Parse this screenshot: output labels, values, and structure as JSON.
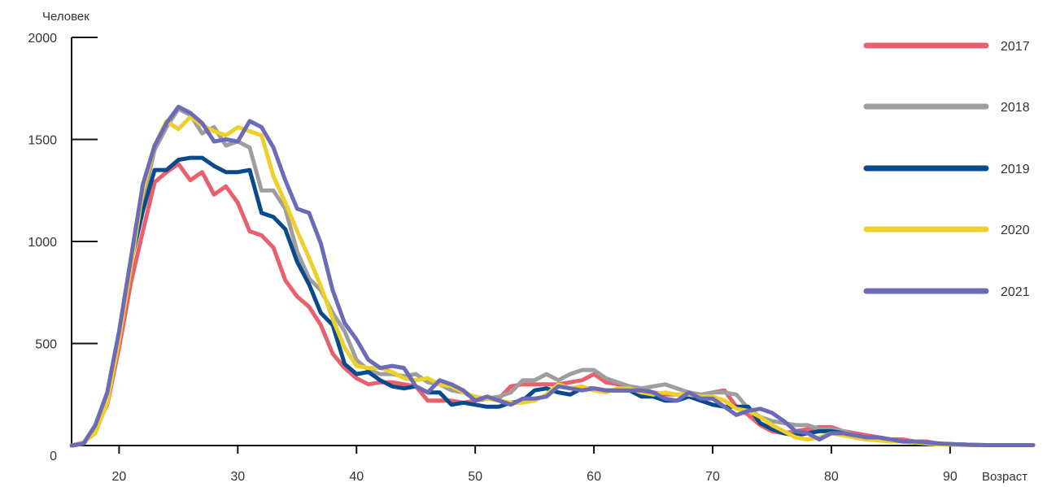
{
  "chart_data": {
    "type": "line",
    "ylabel": "Человек",
    "xlabel": "Возраст",
    "xlim": [
      16,
      97
    ],
    "ylim": [
      0,
      2000
    ],
    "x_ticks": [
      20,
      30,
      40,
      50,
      60,
      70,
      80,
      90
    ],
    "y_ticks": [
      0,
      500,
      1000,
      1500,
      2000
    ],
    "grid": false,
    "legend_position": "right",
    "x": [
      16,
      17,
      18,
      19,
      20,
      21,
      22,
      23,
      24,
      25,
      26,
      27,
      28,
      29,
      30,
      31,
      32,
      33,
      34,
      35,
      36,
      37,
      38,
      39,
      40,
      41,
      42,
      43,
      44,
      45,
      46,
      47,
      48,
      49,
      50,
      51,
      52,
      53,
      54,
      55,
      56,
      57,
      58,
      59,
      60,
      61,
      62,
      63,
      64,
      65,
      66,
      67,
      68,
      69,
      70,
      71,
      72,
      73,
      74,
      75,
      76,
      77,
      78,
      79,
      80,
      81,
      82,
      83,
      84,
      85,
      86,
      87,
      88,
      89,
      90,
      91,
      92,
      93,
      94,
      95,
      96,
      97
    ],
    "series": [
      {
        "name": "2017",
        "color": "#e8606e",
        "values": [
          0,
          10,
          80,
          200,
          480,
          800,
          1050,
          1290,
          1340,
          1380,
          1300,
          1340,
          1230,
          1270,
          1190,
          1050,
          1030,
          970,
          810,
          730,
          680,
          590,
          450,
          380,
          330,
          300,
          310,
          310,
          300,
          290,
          220,
          220,
          220,
          210,
          220,
          230,
          230,
          290,
          300,
          300,
          300,
          300,
          310,
          320,
          350,
          310,
          300,
          290,
          280,
          260,
          250,
          250,
          250,
          240,
          260,
          270,
          190,
          150,
          100,
          70,
          60,
          70,
          80,
          90,
          90,
          70,
          60,
          50,
          40,
          30,
          30,
          20,
          20,
          10,
          5,
          5,
          2,
          2,
          2,
          2,
          2,
          2
        ]
      },
      {
        "name": "2018",
        "color": "#9e9e9e",
        "values": [
          0,
          15,
          70,
          220,
          550,
          900,
          1200,
          1450,
          1560,
          1650,
          1620,
          1530,
          1560,
          1470,
          1490,
          1460,
          1250,
          1250,
          1160,
          950,
          820,
          760,
          650,
          560,
          420,
          370,
          350,
          350,
          340,
          350,
          310,
          300,
          270,
          260,
          230,
          230,
          240,
          260,
          320,
          320,
          350,
          320,
          350,
          370,
          370,
          330,
          310,
          290,
          280,
          290,
          300,
          280,
          260,
          250,
          260,
          260,
          250,
          180,
          140,
          120,
          110,
          100,
          100,
          80,
          80,
          70,
          50,
          40,
          30,
          25,
          20,
          20,
          15,
          10,
          5,
          5,
          3,
          2,
          2,
          2,
          2,
          2
        ]
      },
      {
        "name": "2019",
        "color": "#0a4a8c",
        "values": [
          0,
          10,
          80,
          230,
          540,
          900,
          1150,
          1350,
          1350,
          1400,
          1410,
          1410,
          1370,
          1340,
          1340,
          1350,
          1140,
          1120,
          1060,
          900,
          790,
          650,
          590,
          400,
          350,
          360,
          320,
          290,
          280,
          290,
          260,
          260,
          200,
          210,
          200,
          190,
          190,
          210,
          220,
          270,
          280,
          260,
          250,
          280,
          280,
          270,
          270,
          270,
          240,
          240,
          220,
          220,
          240,
          220,
          200,
          190,
          190,
          190,
          110,
          80,
          60,
          50,
          60,
          70,
          70,
          60,
          40,
          30,
          30,
          20,
          20,
          15,
          10,
          10,
          5,
          5,
          3,
          2,
          2,
          2,
          2,
          2
        ]
      },
      {
        "name": "2020",
        "color": "#efd02a",
        "values": [
          0,
          15,
          60,
          210,
          520,
          880,
          1250,
          1470,
          1590,
          1550,
          1610,
          1570,
          1540,
          1520,
          1560,
          1540,
          1520,
          1320,
          1190,
          1050,
          920,
          780,
          620,
          480,
          390,
          380,
          380,
          360,
          330,
          320,
          330,
          300,
          290,
          260,
          240,
          230,
          220,
          210,
          210,
          220,
          250,
          300,
          280,
          290,
          270,
          260,
          280,
          280,
          260,
          250,
          260,
          250,
          250,
          240,
          240,
          220,
          180,
          170,
          140,
          100,
          70,
          40,
          30,
          40,
          60,
          50,
          40,
          30,
          25,
          20,
          20,
          15,
          10,
          5,
          5,
          3,
          2,
          2,
          2,
          2,
          2,
          2
        ]
      },
      {
        "name": "2021",
        "color": "#6b6bb8",
        "values": [
          0,
          10,
          100,
          260,
          560,
          920,
          1280,
          1470,
          1580,
          1660,
          1630,
          1580,
          1490,
          1500,
          1490,
          1590,
          1560,
          1460,
          1300,
          1160,
          1140,
          990,
          760,
          600,
          520,
          420,
          380,
          390,
          380,
          290,
          260,
          320,
          300,
          270,
          220,
          240,
          220,
          200,
          230,
          230,
          240,
          290,
          280,
          270,
          280,
          270,
          270,
          270,
          270,
          260,
          230,
          220,
          260,
          230,
          230,
          190,
          150,
          170,
          180,
          160,
          120,
          70,
          60,
          30,
          60,
          60,
          50,
          40,
          40,
          30,
          20,
          20,
          15,
          10,
          8,
          5,
          3,
          2,
          2,
          2,
          2,
          2
        ]
      }
    ]
  }
}
